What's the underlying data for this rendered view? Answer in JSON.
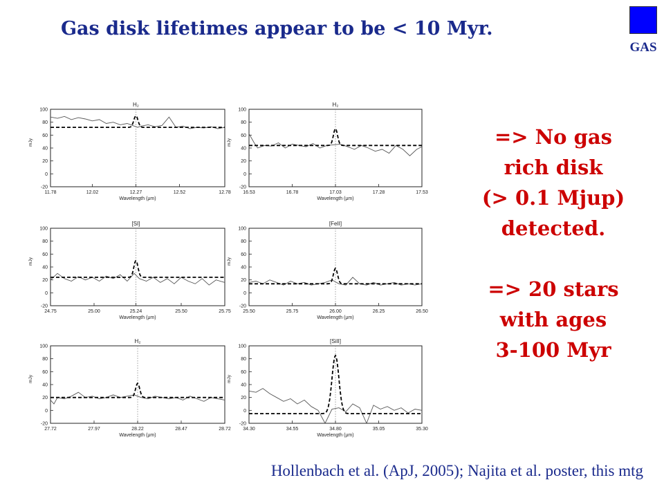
{
  "title": "Gas disk lifetimes appear to be < 10 Myr.",
  "gas_label": "GAS",
  "gas_icon_color": "#0000ff",
  "side_text": {
    "block1": [
      "=> No gas",
      "rich disk",
      "(> 0.1 Mjup)",
      "detected."
    ],
    "block2": [
      "=> 20 stars",
      "with ages",
      "3-100 Myr"
    ]
  },
  "citation": "Hollenbach et al. (ApJ, 2005); Najita et al. poster, this mtg",
  "colors": {
    "title": "#1a2a8c",
    "side_text": "#cc0000",
    "gas_square": "#0000ff"
  },
  "chart_data": [
    {
      "type": "line",
      "line_label": "H₂",
      "line_center": 12.27,
      "xlabel": "Wavelength (μm)",
      "ylabel": "mJy",
      "xlim": [
        11.78,
        12.78
      ],
      "ylim": [
        -20,
        100
      ],
      "xticks": [
        "11.78",
        "12.02",
        "12.27",
        "12.52",
        "12.78"
      ],
      "yticks": [
        -20,
        0,
        20,
        40,
        60,
        80,
        100
      ],
      "model_baseline": 72,
      "model_peak": 90,
      "model_sigma": 0.012,
      "observed": {
        "x": [
          11.78,
          11.82,
          11.86,
          11.9,
          11.94,
          11.98,
          12.02,
          12.06,
          12.1,
          12.14,
          12.18,
          12.22,
          12.26,
          12.27,
          12.28,
          12.3,
          12.34,
          12.38,
          12.42,
          12.46,
          12.5,
          12.54,
          12.58,
          12.62,
          12.66,
          12.7,
          12.74,
          12.78
        ],
        "y": [
          88,
          86,
          89,
          84,
          87,
          85,
          82,
          84,
          78,
          80,
          76,
          78,
          74,
          73,
          72,
          74,
          76,
          73,
          75,
          88,
          72,
          74,
          70,
          72,
          71,
          73,
          70,
          72
        ]
      }
    },
    {
      "type": "line",
      "line_label": "H₂",
      "line_center": 17.03,
      "xlabel": "Wavelength (μm)",
      "ylabel": "mJy",
      "xlim": [
        16.53,
        17.53
      ],
      "ylim": [
        -20,
        100
      ],
      "xticks": [
        "16.53",
        "16.78",
        "17.03",
        "17.28",
        "17.53"
      ],
      "yticks": [
        -20,
        0,
        20,
        40,
        60,
        80,
        100
      ],
      "model_baseline": 44,
      "model_peak": 70,
      "model_sigma": 0.012,
      "observed": {
        "x": [
          16.53,
          16.56,
          16.58,
          16.62,
          16.66,
          16.7,
          16.74,
          16.78,
          16.82,
          16.86,
          16.9,
          16.94,
          16.98,
          17.02,
          17.06,
          17.1,
          17.14,
          17.18,
          17.22,
          17.26,
          17.3,
          17.34,
          17.38,
          17.42,
          17.46,
          17.5,
          17.53
        ],
        "y": [
          62,
          48,
          40,
          44,
          43,
          48,
          40,
          46,
          44,
          42,
          47,
          40,
          44,
          45,
          46,
          42,
          38,
          44,
          40,
          35,
          38,
          32,
          44,
          38,
          28,
          38,
          42
        ]
      }
    },
    {
      "type": "line",
      "line_label": "[SI]",
      "line_center": 25.24,
      "xlabel": "Wavelength (μm)",
      "ylabel": "mJy",
      "xlim": [
        24.75,
        25.75
      ],
      "ylim": [
        -20,
        100
      ],
      "xticks": [
        "24.75",
        "25.00",
        "25.24",
        "25.50",
        "25.75"
      ],
      "yticks": [
        -20,
        0,
        20,
        40,
        60,
        80,
        100
      ],
      "model_baseline": 24,
      "model_peak": 50,
      "model_sigma": 0.012,
      "observed": {
        "x": [
          24.75,
          24.79,
          24.83,
          24.87,
          24.91,
          24.95,
          24.99,
          25.03,
          25.07,
          25.11,
          25.15,
          25.19,
          25.23,
          25.26,
          25.3,
          25.34,
          25.38,
          25.42,
          25.46,
          25.5,
          25.54,
          25.58,
          25.62,
          25.66,
          25.7,
          25.75
        ],
        "y": [
          20,
          30,
          22,
          18,
          25,
          20,
          24,
          18,
          26,
          22,
          28,
          18,
          30,
          22,
          18,
          24,
          16,
          22,
          14,
          24,
          18,
          14,
          22,
          12,
          20,
          16
        ]
      }
    },
    {
      "type": "line",
      "line_label": "[FeII]",
      "line_center": 26.0,
      "xlabel": "Wavelength (μm)",
      "ylabel": "mJy",
      "xlim": [
        25.5,
        26.5
      ],
      "ylim": [
        -20,
        100
      ],
      "xticks": [
        "25.50",
        "25.75",
        "26.00",
        "26.25",
        "26.50"
      ],
      "yticks": [
        -20,
        0,
        20,
        40,
        60,
        80,
        100
      ],
      "model_baseline": 14,
      "model_peak": 38,
      "model_sigma": 0.012,
      "observed": {
        "x": [
          25.5,
          25.54,
          25.58,
          25.62,
          25.66,
          25.7,
          25.74,
          25.78,
          25.82,
          25.86,
          25.9,
          25.94,
          25.98,
          26.02,
          26.06,
          26.1,
          26.14,
          26.18,
          26.22,
          26.26,
          26.3,
          26.34,
          26.38,
          26.42,
          26.46,
          26.5
        ],
        "y": [
          16,
          18,
          14,
          20,
          16,
          12,
          18,
          14,
          16,
          12,
          14,
          16,
          20,
          14,
          12,
          24,
          14,
          12,
          16,
          12,
          14,
          16,
          12,
          14,
          12,
          14
        ]
      }
    },
    {
      "type": "line",
      "line_label": "H₂",
      "line_center": 28.22,
      "xlabel": "Wavelength (μm)",
      "ylabel": "mJy",
      "xlim": [
        27.72,
        28.72
      ],
      "ylim": [
        -20,
        100
      ],
      "xticks": [
        "27.72",
        "27.97",
        "28.22",
        "28.47",
        "28.72"
      ],
      "yticks": [
        -20,
        0,
        20,
        40,
        60,
        80,
        100
      ],
      "model_baseline": 20,
      "model_peak": 42,
      "model_sigma": 0.012,
      "observed": {
        "x": [
          27.72,
          27.74,
          27.76,
          27.8,
          27.84,
          27.88,
          27.92,
          27.96,
          28.0,
          28.04,
          28.08,
          28.12,
          28.16,
          28.2,
          28.24,
          28.28,
          28.32,
          28.36,
          28.4,
          28.44,
          28.48,
          28.52,
          28.56,
          28.6,
          28.64,
          28.68,
          28.72
        ],
        "y": [
          16,
          10,
          20,
          18,
          22,
          28,
          20,
          22,
          18,
          20,
          24,
          20,
          22,
          24,
          20,
          18,
          22,
          20,
          18,
          20,
          16,
          22,
          18,
          14,
          20,
          18,
          16
        ]
      }
    },
    {
      "type": "line",
      "line_label": "[SiII]",
      "line_center": 34.8,
      "xlabel": "Wavelength (μm)",
      "ylabel": "mJy",
      "xlim": [
        34.3,
        35.3
      ],
      "ylim": [
        -20,
        100
      ],
      "xticks": [
        "34.30",
        "34.55",
        "34.80",
        "35.05",
        "35.30"
      ],
      "yticks": [
        -20,
        0,
        20,
        40,
        60,
        80,
        100
      ],
      "model_baseline": -5,
      "model_peak": 85,
      "model_sigma": 0.02,
      "observed": {
        "x": [
          34.3,
          34.34,
          34.38,
          34.42,
          34.46,
          34.5,
          34.54,
          34.58,
          34.62,
          34.66,
          34.7,
          34.74,
          34.78,
          34.82,
          34.86,
          34.9,
          34.94,
          34.98,
          35.02,
          35.06,
          35.1,
          35.14,
          35.18,
          35.22,
          35.26,
          35.3
        ],
        "y": [
          30,
          28,
          34,
          26,
          20,
          14,
          18,
          10,
          16,
          6,
          0,
          -20,
          2,
          4,
          -2,
          10,
          4,
          -20,
          8,
          2,
          6,
          0,
          4,
          -4,
          2,
          0
        ]
      }
    }
  ]
}
